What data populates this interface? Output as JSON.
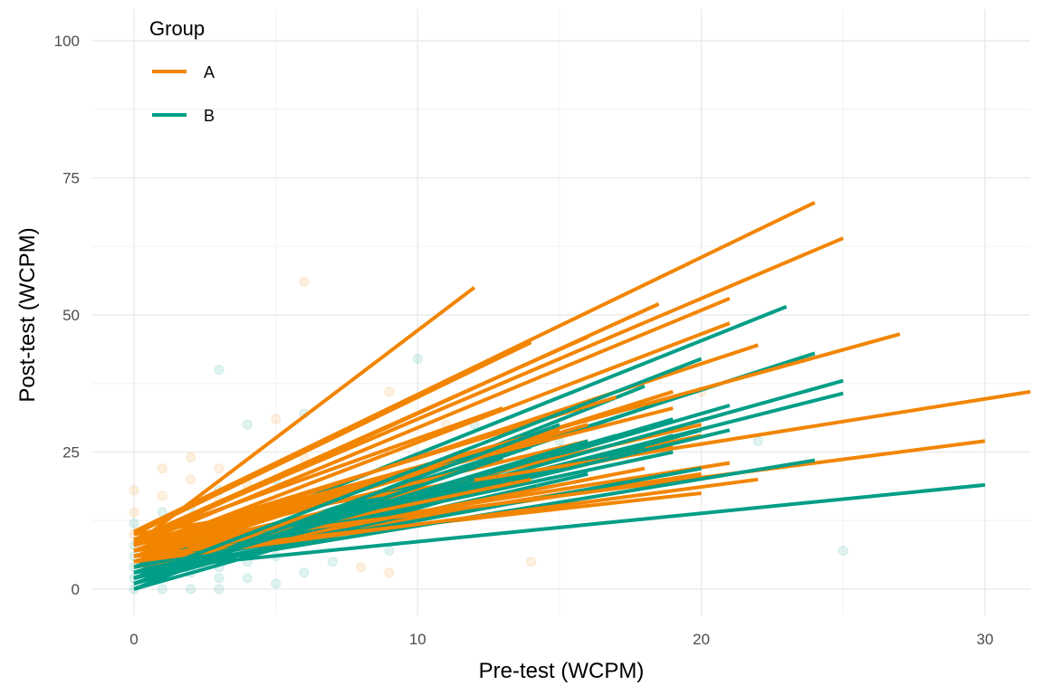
{
  "chart_data": {
    "type": "line",
    "title": "",
    "xlabel": "Pre-test (WCPM)",
    "ylabel": "Post-test (WCPM)",
    "xlim": [
      -1.5,
      31.6
    ],
    "ylim": [
      -5,
      105
    ],
    "xticks": [
      0,
      10,
      20,
      30
    ],
    "yticks": [
      0,
      25,
      50,
      75,
      100
    ],
    "grid": true,
    "legend": {
      "title": "Group",
      "position": "top-left",
      "entries": [
        {
          "label": "A",
          "color": "#F28500"
        },
        {
          "label": "B",
          "color": "#009E87"
        }
      ]
    },
    "series": [
      {
        "name": "A",
        "color": "#F28500",
        "segments": [
          [
            0,
            8,
            12,
            55
          ],
          [
            0,
            10.5,
            24,
            70.5
          ],
          [
            0,
            9,
            25,
            64
          ],
          [
            0,
            8,
            27,
            46.5
          ],
          [
            0,
            10,
            31.6,
            36
          ],
          [
            0,
            7,
            30,
            27
          ],
          [
            0,
            8,
            21,
            53
          ],
          [
            0,
            8.5,
            18.5,
            52
          ],
          [
            0,
            7,
            21,
            48.5
          ],
          [
            0,
            10,
            14,
            45
          ],
          [
            0,
            9,
            16,
            46
          ],
          [
            0,
            7,
            22,
            44.5
          ],
          [
            0,
            6,
            20,
            17.5
          ],
          [
            0,
            5,
            22,
            20
          ],
          [
            0,
            6,
            21,
            23
          ],
          [
            0,
            5,
            19,
            36
          ],
          [
            0,
            6,
            20,
            30
          ],
          [
            0,
            8,
            19,
            33
          ],
          [
            0,
            7,
            18,
            34
          ],
          [
            0,
            6,
            16,
            30
          ],
          [
            0,
            8,
            17,
            35
          ],
          [
            0,
            7,
            15,
            29
          ],
          [
            0,
            5,
            20,
            21
          ],
          [
            0,
            6,
            19,
            26
          ],
          [
            0,
            4,
            18,
            22
          ],
          [
            0,
            7,
            16,
            27
          ],
          [
            0,
            5,
            14,
            20
          ],
          [
            0,
            6,
            12,
            25
          ],
          [
            0,
            9,
            13,
            33
          ],
          [
            0,
            5,
            17,
            19
          ],
          [
            0,
            6,
            20,
            28
          ]
        ]
      },
      {
        "name": "B",
        "color": "#009E87",
        "segments": [
          [
            0,
            4,
            23,
            51.5
          ],
          [
            0,
            3,
            24,
            43
          ],
          [
            0,
            2,
            25,
            38
          ],
          [
            0,
            3,
            25,
            35.7
          ],
          [
            1,
            4,
            30,
            19
          ],
          [
            0,
            3,
            24,
            23.5
          ],
          [
            0,
            2,
            20,
            42
          ],
          [
            0,
            2,
            21,
            33.5
          ],
          [
            0,
            0,
            18,
            37
          ],
          [
            0,
            1,
            20,
            29
          ],
          [
            0,
            2,
            19,
            31
          ],
          [
            0,
            3,
            21,
            29
          ],
          [
            0,
            1,
            15,
            30
          ],
          [
            0,
            2,
            16,
            27
          ],
          [
            0,
            1,
            14,
            26
          ],
          [
            0,
            3,
            17,
            28
          ],
          [
            0,
            2,
            18,
            33
          ],
          [
            0,
            4,
            19,
            25
          ],
          [
            0,
            3,
            20,
            22
          ],
          [
            0,
            1,
            13,
            24
          ],
          [
            0,
            2,
            12,
            20
          ],
          [
            0,
            4,
            17,
            19
          ],
          [
            0,
            2,
            16,
            21
          ],
          [
            0,
            0,
            19,
            28
          ],
          [
            0,
            3,
            18,
            26
          ]
        ]
      }
    ],
    "points": [
      {
        "group": "B",
        "xy": [
          [
            0,
            0
          ],
          [
            0,
            2
          ],
          [
            0,
            4
          ],
          [
            0,
            6
          ],
          [
            0,
            8
          ],
          [
            0,
            12
          ],
          [
            1,
            0
          ],
          [
            1,
            2
          ],
          [
            1,
            5
          ],
          [
            1,
            9
          ],
          [
            1,
            14
          ],
          [
            2,
            0
          ],
          [
            2,
            3
          ],
          [
            2,
            6
          ],
          [
            2,
            10
          ],
          [
            2,
            15
          ],
          [
            3,
            0
          ],
          [
            3,
            2
          ],
          [
            3,
            4
          ],
          [
            3,
            8
          ],
          [
            3,
            18
          ],
          [
            3,
            40
          ],
          [
            4,
            2
          ],
          [
            4,
            5
          ],
          [
            4,
            12
          ],
          [
            4,
            30
          ],
          [
            5,
            1
          ],
          [
            5,
            6
          ],
          [
            5,
            20
          ],
          [
            6,
            3
          ],
          [
            6,
            10
          ],
          [
            6,
            32
          ],
          [
            7,
            5
          ],
          [
            7,
            14
          ],
          [
            9,
            7
          ],
          [
            10,
            42
          ],
          [
            12,
            30
          ],
          [
            15,
            27
          ],
          [
            18,
            25
          ],
          [
            22,
            27
          ],
          [
            25,
            7
          ]
        ]
      },
      {
        "group": "A",
        "xy": [
          [
            0,
            10
          ],
          [
            0,
            14
          ],
          [
            0,
            18
          ],
          [
            1,
            12
          ],
          [
            1,
            17
          ],
          [
            1,
            22
          ],
          [
            2,
            13
          ],
          [
            2,
            20
          ],
          [
            2,
            24
          ],
          [
            3,
            16
          ],
          [
            3,
            22
          ],
          [
            4,
            9
          ],
          [
            4,
            19
          ],
          [
            5,
            31
          ],
          [
            5,
            15
          ],
          [
            6,
            56
          ],
          [
            6,
            24
          ],
          [
            7,
            18
          ],
          [
            8,
            4
          ],
          [
            8,
            14
          ],
          [
            9,
            36
          ],
          [
            9,
            3
          ],
          [
            11,
            30
          ],
          [
            14,
            5
          ],
          [
            20,
            36
          ]
        ]
      }
    ]
  }
}
